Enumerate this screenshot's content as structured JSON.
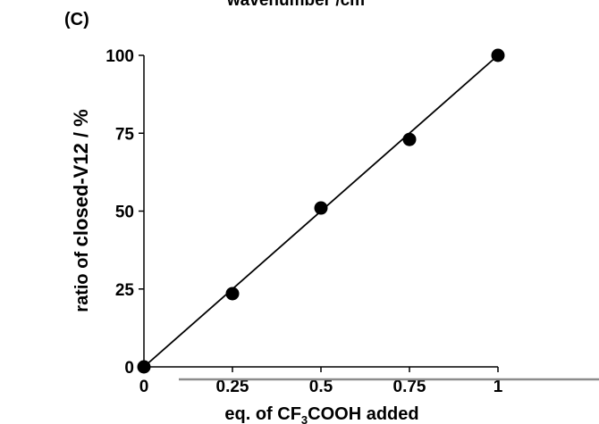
{
  "panel_label": "(C)",
  "cropped_top_text": "wavenumber /cm",
  "chart_data": {
    "type": "scatter",
    "xlabel_parts": [
      "eq. of CF",
      "3",
      "COOH added"
    ],
    "ylabel_parts": [
      "ratio of ",
      "closed-V12 / %"
    ],
    "x_ticks": [
      "0",
      "0.25",
      "0.5",
      "0.75",
      "1"
    ],
    "y_ticks": [
      "0",
      "25",
      "50",
      "75",
      "100"
    ],
    "x": [
      0,
      0.25,
      0.5,
      0.75,
      1
    ],
    "y": [
      0,
      23.5,
      51,
      73,
      100
    ],
    "xlim": [
      0,
      1
    ],
    "ylim": [
      0,
      100
    ],
    "fit_line": {
      "x": [
        0,
        1
      ],
      "y": [
        0,
        100
      ]
    },
    "grid": false,
    "colors": {
      "points": "#000000",
      "line": "#000000",
      "baseline": "#8c8c8c"
    }
  }
}
